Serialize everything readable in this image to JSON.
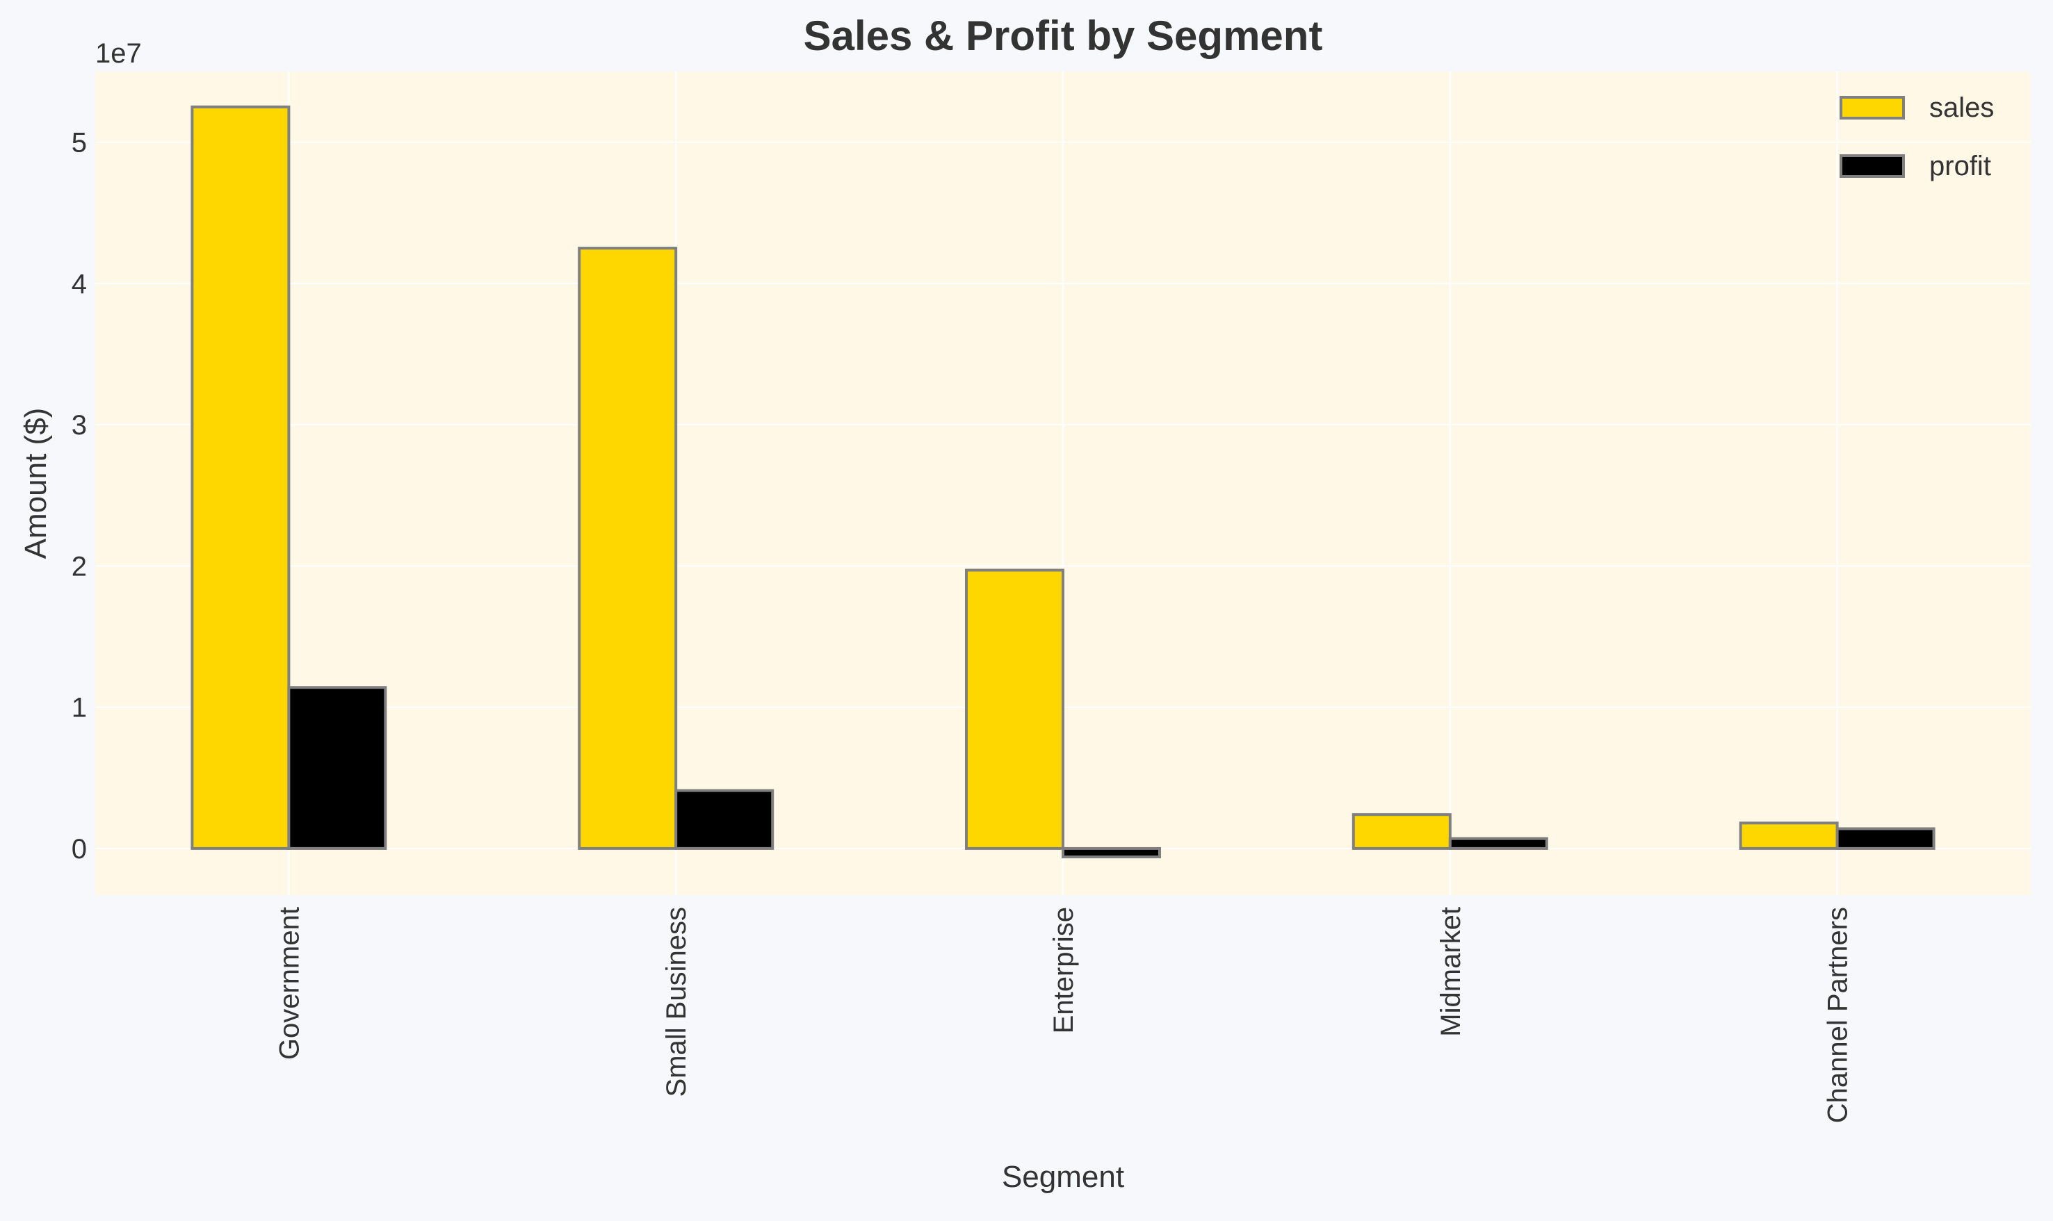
{
  "chart_data": {
    "type": "bar",
    "title": "Sales & Profit by Segment",
    "xlabel": "Segment",
    "ylabel": "Amount ($)",
    "offset_label": "1e7",
    "categories": [
      "Government",
      "Small Business",
      "Enterprise",
      "Midmarket",
      "Channel Partners"
    ],
    "series": [
      {
        "name": "sales",
        "values": [
          52500000,
          42500000,
          19700000,
          2400000,
          1800000
        ]
      },
      {
        "name": "profit",
        "values": [
          11400000,
          4100000,
          -600000,
          700000,
          1400000
        ]
      }
    ],
    "ylim": [
      -3300000,
      55000000
    ],
    "yticks": [
      0,
      10000000,
      20000000,
      30000000,
      40000000,
      50000000
    ],
    "ytick_labels": [
      "0",
      "1",
      "2",
      "3",
      "4",
      "5"
    ],
    "grid": true,
    "legend_position": "top-right"
  },
  "colors": {
    "sales": "#ffd700",
    "profit": "#000000",
    "bar_edge": "#808080",
    "plot_background": "#fff8e7",
    "page_background": "#f7f8fc",
    "grid": "#ffffff",
    "title_text": "#333333",
    "axis_text": "#333333"
  }
}
